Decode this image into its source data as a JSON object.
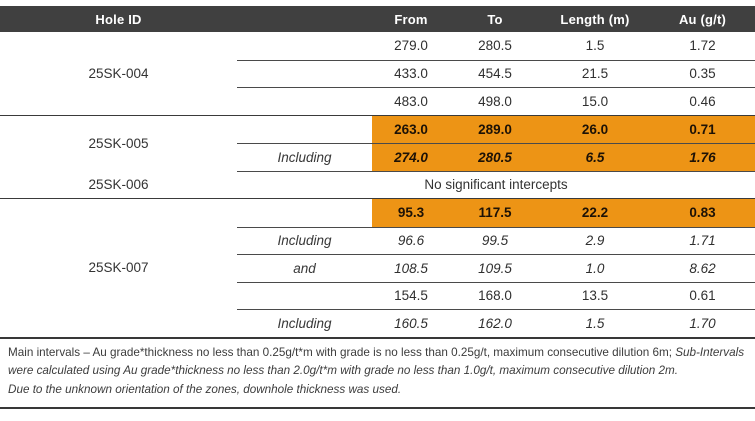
{
  "colors": {
    "header_bg": "#404040",
    "header_text": "#ffffff",
    "highlight": "#ED9415"
  },
  "chart_data": {
    "type": "table",
    "columns": [
      "Hole ID",
      "",
      "From",
      "To",
      "Length (m)",
      "Au (g/t)"
    ],
    "groups": [
      {
        "hole_id": "25SK-004",
        "rows": [
          {
            "label": "",
            "from": "279.0",
            "to": "280.5",
            "length": "1.5",
            "au": "1.72",
            "highlight": false,
            "italic": false
          },
          {
            "label": "",
            "from": "433.0",
            "to": "454.5",
            "length": "21.5",
            "au": "0.35",
            "highlight": false,
            "italic": false
          },
          {
            "label": "",
            "from": "483.0",
            "to": "498.0",
            "length": "15.0",
            "au": "0.46",
            "highlight": false,
            "italic": false
          }
        ]
      },
      {
        "hole_id": "25SK-005",
        "rows": [
          {
            "label": "",
            "from": "263.0",
            "to": "289.0",
            "length": "26.0",
            "au": "0.71",
            "highlight": true,
            "italic": false
          },
          {
            "label": "Including",
            "from": "274.0",
            "to": "280.5",
            "length": "6.5",
            "au": "1.76",
            "highlight": true,
            "italic": true
          }
        ]
      },
      {
        "hole_id": "25SK-006",
        "rows": [
          {
            "message": "No significant intercepts"
          }
        ]
      },
      {
        "hole_id": "25SK-007",
        "rows": [
          {
            "label": "",
            "from": "95.3",
            "to": "117.5",
            "length": "22.2",
            "au": "0.83",
            "highlight": true,
            "italic": false
          },
          {
            "label": "Including",
            "from": "96.6",
            "to": "99.5",
            "length": "2.9",
            "au": "1.71",
            "highlight": false,
            "italic": true
          },
          {
            "label": "and",
            "from": "108.5",
            "to": "109.5",
            "length": "1.0",
            "au": "8.62",
            "highlight": false,
            "italic": true
          },
          {
            "label": "",
            "from": "154.5",
            "to": "168.0",
            "length": "13.5",
            "au": "0.61",
            "highlight": false,
            "italic": false
          },
          {
            "label": "Including",
            "from": "160.5",
            "to": "162.0",
            "length": "1.5",
            "au": "1.70",
            "highlight": false,
            "italic": true
          }
        ]
      }
    ],
    "footnotes": {
      "note1_regular": "Main intervals – Au grade*thickness no less than 0.25g/t*m with grade is no less than 0.25g/t, maximum consecutive dilution 6m; ",
      "note1_italic": "Sub-Intervals were calculated using Au grade*thickness no less than 2.0g/t*m with grade no less than 1.0g/t, maximum consecutive dilution 2m.",
      "note2": "Due to the unknown orientation of the zones, downhole thickness was used."
    }
  }
}
